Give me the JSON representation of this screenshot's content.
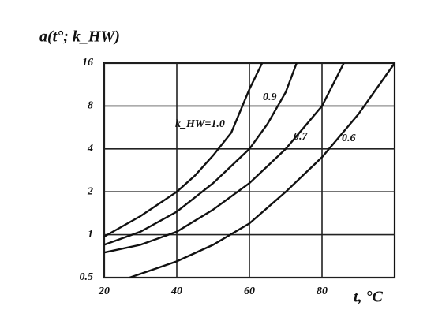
{
  "chart_data": {
    "type": "line",
    "y_label": "a(t°; k_HW)",
    "x_label": "t, °C",
    "xlim": [
      20,
      100
    ],
    "xticks": [
      20,
      40,
      60,
      80
    ],
    "ylim": [
      0.5,
      16
    ],
    "yticks": [
      0.5,
      1,
      2,
      4,
      8,
      16
    ],
    "y_log": true,
    "grid": true,
    "series": [
      {
        "name": "k_HW=1.0",
        "color": "#111111",
        "x": [
          20,
          30,
          40,
          45,
          50,
          55,
          60,
          63.5
        ],
        "values": [
          0.97,
          1.35,
          2,
          2.6,
          3.6,
          5.2,
          10.5,
          16
        ]
      },
      {
        "name": "0.9",
        "color": "#111111",
        "x": [
          20,
          30,
          40,
          50,
          60,
          65,
          70,
          73
        ],
        "values": [
          0.85,
          1.05,
          1.45,
          2.3,
          4,
          6,
          10,
          16
        ]
      },
      {
        "name": "0.7",
        "color": "#111111",
        "x": [
          20,
          30,
          40,
          50,
          60,
          70,
          80,
          86
        ],
        "values": [
          0.75,
          0.85,
          1.05,
          1.5,
          2.3,
          4,
          8,
          16
        ]
      },
      {
        "name": "0.6",
        "color": "#111111",
        "x": [
          27,
          40,
          50,
          60,
          70,
          80,
          90,
          100
        ],
        "values": [
          0.5,
          0.65,
          0.85,
          1.2,
          2,
          3.5,
          7,
          16
        ]
      }
    ]
  }
}
